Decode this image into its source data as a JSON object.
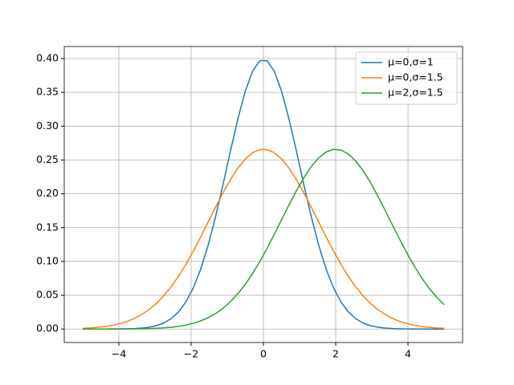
{
  "chart_data": {
    "type": "line",
    "x": [
      -5.0,
      -4.796,
      -4.592,
      -4.388,
      -4.184,
      -3.98,
      -3.776,
      -3.571,
      -3.367,
      -3.163,
      -2.959,
      -2.755,
      -2.551,
      -2.347,
      -2.143,
      -1.939,
      -1.735,
      -1.531,
      -1.327,
      -1.122,
      -0.918,
      -0.714,
      -0.51,
      -0.306,
      -0.102,
      0.102,
      0.306,
      0.51,
      0.714,
      0.918,
      1.122,
      1.327,
      1.531,
      1.735,
      1.939,
      2.143,
      2.347,
      2.551,
      2.755,
      2.959,
      3.163,
      3.367,
      3.571,
      3.776,
      3.98,
      4.184,
      4.388,
      4.592,
      4.796,
      5.0
    ],
    "series": [
      {
        "name": "μ=0,σ=1",
        "color": "#1f77b4",
        "values": [
          0.0,
          0.0,
          0.0,
          0.0,
          0.0001,
          0.0001,
          0.0003,
          0.0007,
          0.0014,
          0.0027,
          0.005,
          0.009,
          0.0154,
          0.0254,
          0.0402,
          0.0609,
          0.0886,
          0.1236,
          0.1654,
          0.2126,
          0.2618,
          0.3092,
          0.3503,
          0.3807,
          0.3969,
          0.3969,
          0.3807,
          0.3503,
          0.3092,
          0.2618,
          0.2126,
          0.1654,
          0.1236,
          0.0886,
          0.0609,
          0.0402,
          0.0254,
          0.0154,
          0.009,
          0.005,
          0.0027,
          0.0014,
          0.0007,
          0.0003,
          0.0001,
          0.0001,
          0.0,
          0.0,
          0.0,
          0.0
        ]
      },
      {
        "name": "μ=0,σ=1.5",
        "color": "#ff7f0e",
        "values": [
          0.001,
          0.0016,
          0.0025,
          0.0037,
          0.0054,
          0.0079,
          0.0112,
          0.0156,
          0.0214,
          0.0288,
          0.038,
          0.0492,
          0.0626,
          0.0782,
          0.0959,
          0.1153,
          0.1362,
          0.158,
          0.1798,
          0.2011,
          0.2205,
          0.2375,
          0.251,
          0.2605,
          0.2653,
          0.2653,
          0.2605,
          0.251,
          0.2375,
          0.2205,
          0.2011,
          0.1798,
          0.158,
          0.1362,
          0.1153,
          0.0959,
          0.0782,
          0.0626,
          0.0492,
          0.038,
          0.0288,
          0.0214,
          0.0156,
          0.0112,
          0.0079,
          0.0054,
          0.0037,
          0.0025,
          0.0016,
          0.001
        ]
      },
      {
        "name": "μ=2,σ=1.5",
        "color": "#2ca02c",
        "values": [
          0.0,
          0.0,
          0.0,
          0.0,
          0.0001,
          0.0001,
          0.0002,
          0.0003,
          0.0004,
          0.0007,
          0.0011,
          0.0017,
          0.0027,
          0.004,
          0.0059,
          0.0085,
          0.012,
          0.0167,
          0.0227,
          0.0305,
          0.0401,
          0.0518,
          0.0656,
          0.0816,
          0.0996,
          0.1194,
          0.1406,
          0.1624,
          0.1842,
          0.205,
          0.2241,
          0.2405,
          0.2533,
          0.2618,
          0.2657,
          0.2648,
          0.2589,
          0.2486,
          0.2343,
          0.2168,
          0.1969,
          0.1756,
          0.1537,
          0.132,
          0.1113,
          0.0922,
          0.0749,
          0.0598,
          0.0468,
          0.036
        ]
      }
    ],
    "xlim": [
      -5.51,
      5.51
    ],
    "xticks": [
      {
        "value": -4,
        "label": "−4"
      },
      {
        "value": -2,
        "label": "−2"
      },
      0,
      2,
      4
    ],
    "ylim": [
      -0.0199,
      0.4178
    ],
    "yticks": [
      {
        "value": 0,
        "label": "0.00"
      },
      {
        "value": 0.05,
        "label": "0.05"
      },
      {
        "value": 0.1,
        "label": "0.10"
      },
      {
        "value": 0.15,
        "label": "0.15"
      },
      {
        "value": 0.2,
        "label": "0.20"
      },
      {
        "value": 0.25,
        "label": "0.25"
      },
      {
        "value": 0.3,
        "label": "0.30"
      },
      {
        "value": 0.35,
        "label": "0.35"
      },
      {
        "value": 0.4,
        "label": "0.40"
      }
    ],
    "grid": true,
    "legend": "upper-right"
  }
}
